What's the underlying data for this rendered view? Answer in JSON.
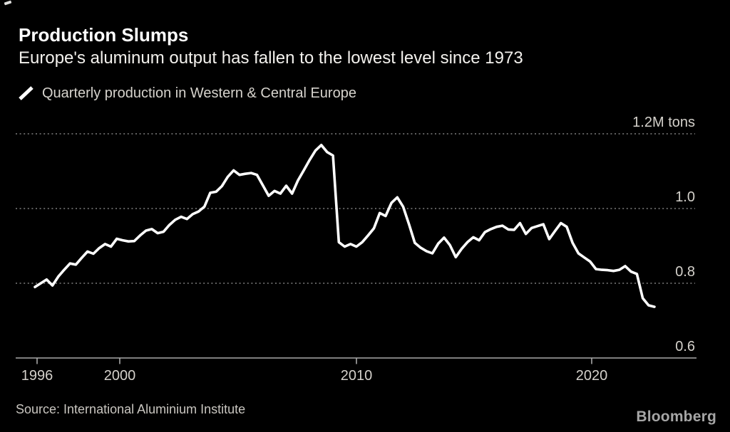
{
  "chart_data": {
    "type": "line",
    "title": "Production Slumps",
    "subtitle": "Europe's aluminum output has fallen to the lowest level since 1973",
    "unit": "M tons",
    "ylim": [
      0.6,
      1.2
    ],
    "grid": "dotted-horizontal",
    "legend_position": "top-left",
    "yticks": [
      {
        "label": "1.2M tons",
        "value": 1.2
      },
      {
        "label": "1.0",
        "value": 1.0
      },
      {
        "label": "0.8",
        "value": 0.8
      },
      {
        "label": "0.6",
        "value": 0.6
      }
    ],
    "xticks": [
      {
        "label": "1996"
      },
      {
        "label": "2000"
      },
      {
        "label": "2010"
      },
      {
        "label": "2020"
      }
    ],
    "series": [
      {
        "name": "Quarterly production in Western & Central Europe",
        "color": "#ffffff",
        "frequency": "quarterly",
        "start": "1996 Q1",
        "end": "2022 Q3",
        "values": [
          0.79,
          0.8,
          0.81,
          0.794,
          0.818,
          0.836,
          0.853,
          0.85,
          0.868,
          0.885,
          0.879,
          0.894,
          0.905,
          0.898,
          0.919,
          0.915,
          0.912,
          0.913,
          0.928,
          0.941,
          0.945,
          0.934,
          0.938,
          0.956,
          0.97,
          0.978,
          0.972,
          0.985,
          0.992,
          1.005,
          1.042,
          1.045,
          1.06,
          1.085,
          1.102,
          1.09,
          1.093,
          1.095,
          1.09,
          1.062,
          1.034,
          1.047,
          1.04,
          1.061,
          1.04,
          1.075,
          1.102,
          1.13,
          1.155,
          1.17,
          1.151,
          1.142,
          0.91,
          0.898,
          0.905,
          0.898,
          0.91,
          0.928,
          0.947,
          0.988,
          0.98,
          1.015,
          1.03,
          1.005,
          0.958,
          0.908,
          0.895,
          0.886,
          0.88,
          0.906,
          0.922,
          0.902,
          0.87,
          0.892,
          0.91,
          0.923,
          0.915,
          0.937,
          0.945,
          0.951,
          0.954,
          0.944,
          0.943,
          0.961,
          0.932,
          0.948,
          0.953,
          0.958,
          0.918,
          0.94,
          0.961,
          0.951,
          0.908,
          0.88,
          0.869,
          0.858,
          0.838,
          0.836,
          0.835,
          0.833,
          0.836,
          0.846,
          0.831,
          0.825,
          0.76,
          0.741,
          0.737
        ]
      }
    ]
  },
  "colors": {
    "background": "#000000",
    "line": "#ffffff",
    "gridline": "#5f5f5f",
    "axis": "#a8a8a8",
    "title": "#ffffff",
    "labels": "#d4d1cb"
  },
  "source": {
    "text": "Source:  International Aluminium Institute"
  },
  "branding": {
    "logo_text": "Bloomberg"
  }
}
